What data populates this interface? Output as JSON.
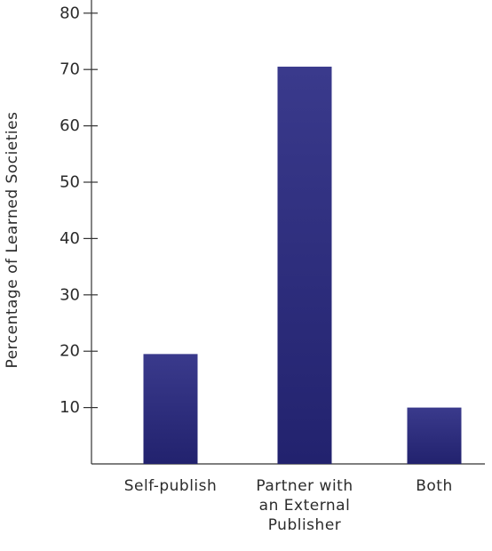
{
  "chart_data": {
    "type": "bar",
    "title": "",
    "xlabel": "",
    "ylabel": "Percentage of Learned Societies",
    "categories": [
      [
        "Self-publish"
      ],
      [
        "Partner with",
        "an External",
        "Publisher"
      ],
      [
        "Both"
      ]
    ],
    "values": [
      19.5,
      70.5,
      10
    ],
    "ylim": [
      0,
      84
    ],
    "yticks": [
      10,
      20,
      30,
      40,
      50,
      60,
      70,
      80
    ],
    "grid": false,
    "legend": "none",
    "colors": {
      "bar_top": "#3a3a8c",
      "bar_bottom": "#22226e",
      "axis": "#333333"
    }
  }
}
